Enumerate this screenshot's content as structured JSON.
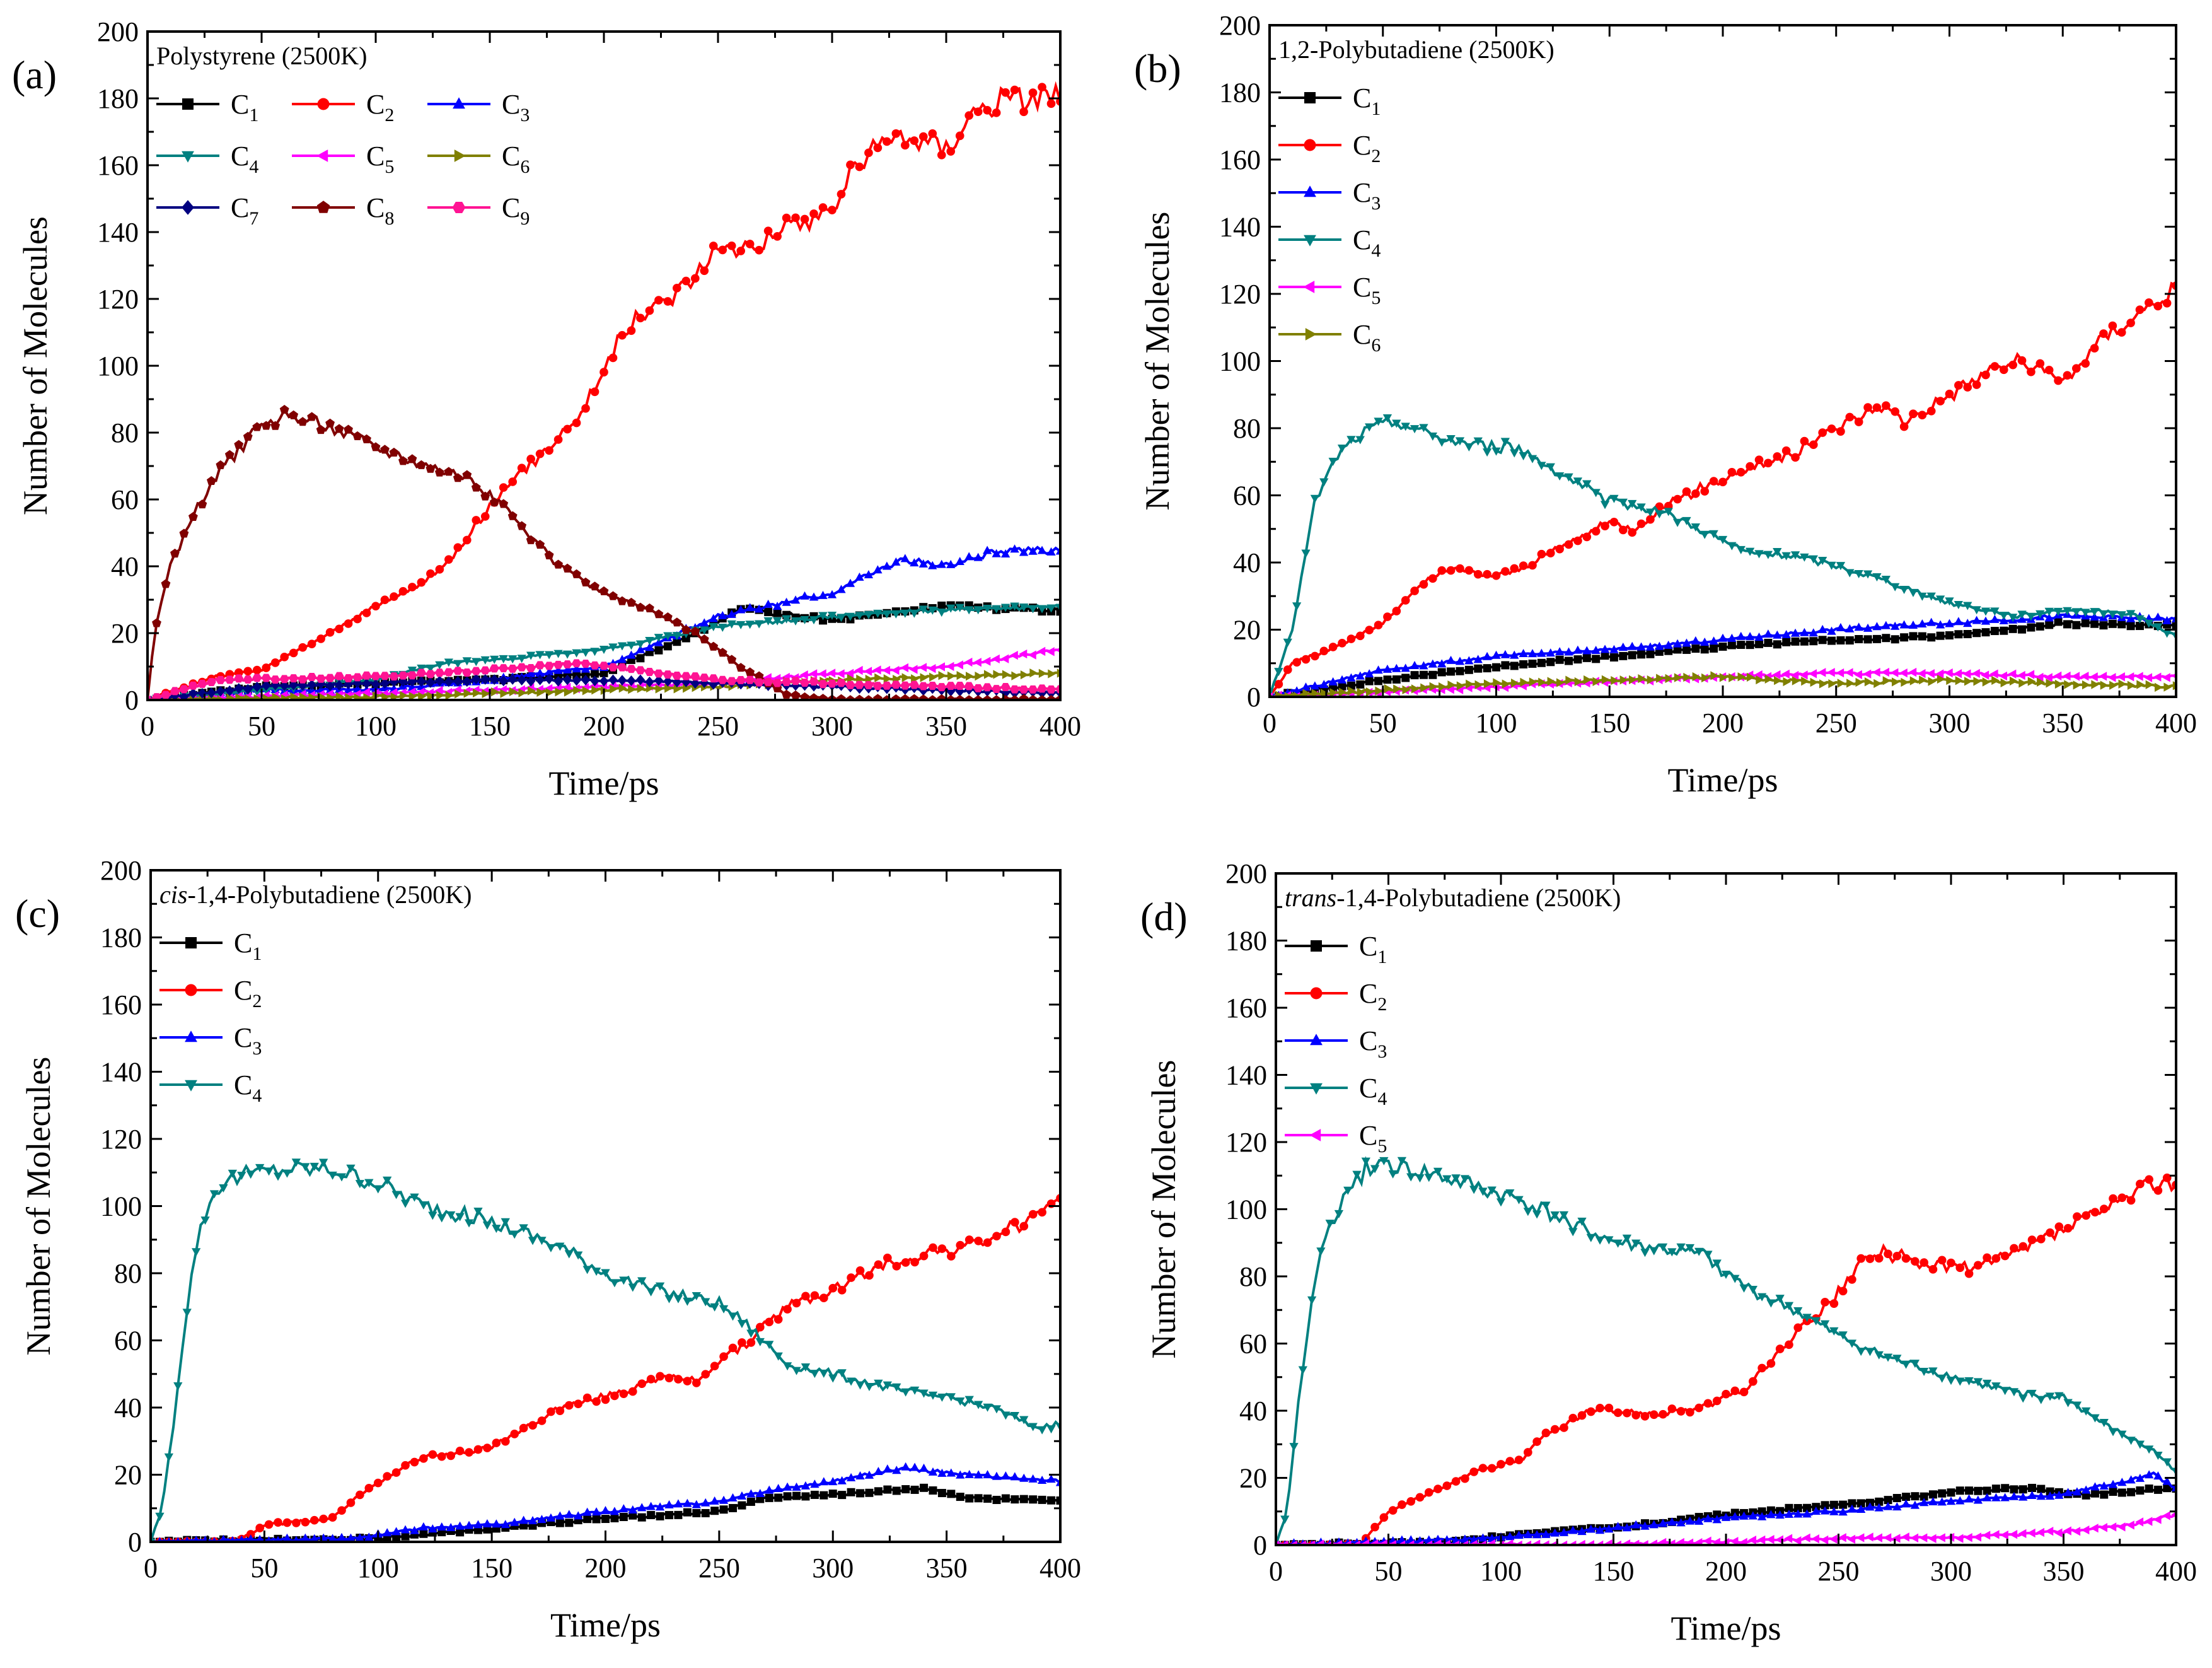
{
  "chart_data": [
    {
      "type": "line",
      "panel": "(a)",
      "title": "Polystyrene (2500K)",
      "xlabel": "Time/ps",
      "ylabel": "Number of Molecules",
      "xlim": [
        0,
        400
      ],
      "ylim": [
        0,
        200
      ],
      "xticks": [
        0,
        50,
        100,
        150,
        200,
        250,
        300,
        350,
        400
      ],
      "yticks": [
        0,
        20,
        40,
        60,
        80,
        100,
        120,
        140,
        160,
        180,
        200
      ],
      "legend_columns": 3,
      "series": [
        {
          "name": "C",
          "sub": "1",
          "color": "#000000",
          "marker": "square",
          "x": [
            0,
            50,
            100,
            150,
            200,
            240,
            260,
            300,
            350,
            400
          ],
          "y": [
            0,
            4,
            5,
            6,
            8,
            20,
            27,
            24,
            28,
            27
          ]
        },
        {
          "name": "C",
          "sub": "2",
          "color": "#ff0000",
          "marker": "circle",
          "x": [
            0,
            30,
            50,
            80,
            100,
            120,
            130,
            150,
            170,
            190,
            210,
            230,
            250,
            270,
            300,
            310,
            330,
            350,
            360,
            380,
            400
          ],
          "y": [
            0,
            7,
            9,
            20,
            28,
            35,
            40,
            58,
            72,
            86,
            112,
            121,
            134,
            138,
            147,
            160,
            170,
            165,
            176,
            180,
            182
          ]
        },
        {
          "name": "C",
          "sub": "3",
          "color": "#0000ff",
          "marker": "triangle-up",
          "x": [
            0,
            50,
            100,
            150,
            200,
            250,
            300,
            330,
            350,
            370,
            400
          ],
          "y": [
            0,
            3,
            3,
            6,
            10,
            25,
            32,
            42,
            40,
            44,
            45
          ]
        },
        {
          "name": "C",
          "sub": "4",
          "color": "#008080",
          "marker": "triangle-down",
          "x": [
            0,
            50,
            100,
            130,
            150,
            200,
            250,
            300,
            350,
            400
          ],
          "y": [
            0,
            3,
            6,
            11,
            12,
            15,
            22,
            25,
            27,
            28
          ]
        },
        {
          "name": "C",
          "sub": "5",
          "color": "#ff00ff",
          "marker": "triangle-left",
          "x": [
            0,
            100,
            200,
            250,
            300,
            350,
            400
          ],
          "y": [
            0,
            2,
            4,
            5,
            8,
            10,
            15
          ]
        },
        {
          "name": "C",
          "sub": "6",
          "color": "#808000",
          "marker": "triangle-right",
          "x": [
            0,
            100,
            200,
            250,
            300,
            350,
            400
          ],
          "y": [
            0,
            1,
            3,
            4,
            6,
            7,
            8
          ]
        },
        {
          "name": "C",
          "sub": "7",
          "color": "#000080",
          "marker": "diamond",
          "x": [
            0,
            50,
            100,
            150,
            200,
            250,
            300,
            350,
            400
          ],
          "y": [
            0,
            4,
            5,
            6,
            6,
            5,
            4,
            3,
            2
          ]
        },
        {
          "name": "C",
          "sub": "8",
          "color": "#800000",
          "marker": "pentagon",
          "x": [
            0,
            3,
            10,
            20,
            30,
            40,
            50,
            60,
            70,
            80,
            100,
            120,
            140,
            160,
            180,
            200,
            220,
            240,
            260,
            280,
            300
          ],
          "y": [
            0,
            20,
            40,
            55,
            67,
            75,
            82,
            85,
            84,
            82,
            76,
            71,
            67,
            55,
            40,
            32,
            27,
            20,
            10,
            2,
            0
          ]
        },
        {
          "name": "C",
          "sub": "9",
          "color": "#ff1493",
          "marker": "hexagon",
          "x": [
            0,
            30,
            100,
            150,
            190,
            250,
            300,
            350,
            400
          ],
          "y": [
            0,
            6,
            7,
            9,
            11,
            6,
            5,
            4,
            3
          ]
        }
      ]
    },
    {
      "type": "line",
      "panel": "(b)",
      "title": "1,2-Polybutadiene (2500K)",
      "xlabel": "Time/ps",
      "ylabel": "Number of Molecules",
      "xlim": [
        0,
        400
      ],
      "ylim": [
        0,
        200
      ],
      "xticks": [
        0,
        50,
        100,
        150,
        200,
        250,
        300,
        350,
        400
      ],
      "yticks": [
        0,
        20,
        40,
        60,
        80,
        100,
        120,
        140,
        160,
        180,
        200
      ],
      "legend_columns": 1,
      "series": [
        {
          "name": "C",
          "sub": "1",
          "color": "#000000",
          "marker": "square",
          "x": [
            0,
            50,
            100,
            150,
            200,
            250,
            300,
            350,
            400
          ],
          "y": [
            0,
            5,
            9,
            12,
            15,
            17,
            18,
            22,
            21
          ]
        },
        {
          "name": "C",
          "sub": "2",
          "color": "#ff0000",
          "marker": "circle",
          "x": [
            0,
            10,
            30,
            50,
            70,
            80,
            100,
            110,
            130,
            150,
            160,
            170,
            190,
            210,
            230,
            250,
            270,
            280,
            300,
            320,
            330,
            350,
            370,
            400
          ],
          "y": [
            0,
            10,
            15,
            22,
            35,
            38,
            36,
            38,
            45,
            52,
            50,
            55,
            62,
            68,
            72,
            80,
            87,
            82,
            90,
            98,
            100,
            94,
            108,
            122
          ]
        },
        {
          "name": "C",
          "sub": "3",
          "color": "#0000ff",
          "marker": "triangle-up",
          "x": [
            0,
            50,
            100,
            150,
            200,
            250,
            300,
            350,
            400
          ],
          "y": [
            0,
            8,
            12,
            14,
            17,
            20,
            22,
            24,
            23
          ]
        },
        {
          "name": "C",
          "sub": "4",
          "color": "#008080",
          "marker": "triangle-down",
          "x": [
            0,
            10,
            20,
            30,
            40,
            50,
            57,
            70,
            90,
            110,
            130,
            150,
            170,
            190,
            210,
            230,
            250,
            270,
            300,
            330,
            350,
            380,
            400
          ],
          "y": [
            0,
            20,
            58,
            72,
            78,
            81,
            82,
            78,
            75,
            74,
            66,
            58,
            56,
            50,
            43,
            42,
            39,
            35,
            28,
            24,
            26,
            25,
            18
          ]
        },
        {
          "name": "C",
          "sub": "5",
          "color": "#ff00ff",
          "marker": "triangle-left",
          "x": [
            0,
            100,
            200,
            250,
            300,
            350,
            400
          ],
          "y": [
            0,
            3,
            6,
            7,
            7,
            6,
            6
          ]
        },
        {
          "name": "C",
          "sub": "6",
          "color": "#808000",
          "marker": "triangle-right",
          "x": [
            0,
            50,
            100,
            150,
            200,
            250,
            300,
            350,
            400
          ],
          "y": [
            0,
            2,
            4,
            5,
            6,
            4,
            5,
            4,
            3
          ]
        }
      ]
    },
    {
      "type": "line",
      "panel": "(c)",
      "title_italic": "cis",
      "title": "-1,4-Polybutadiene (2500K)",
      "xlabel": "Time/ps",
      "ylabel": "Number of Molecules",
      "xlim": [
        0,
        400
      ],
      "ylim": [
        0,
        200
      ],
      "xticks": [
        0,
        50,
        100,
        150,
        200,
        250,
        300,
        350,
        400
      ],
      "yticks": [
        0,
        20,
        40,
        60,
        80,
        100,
        120,
        140,
        160,
        180,
        200
      ],
      "legend_columns": 1,
      "series": [
        {
          "name": "C",
          "sub": "1",
          "color": "#000000",
          "marker": "square",
          "x": [
            0,
            100,
            150,
            200,
            250,
            270,
            300,
            340,
            360,
            400
          ],
          "y": [
            0,
            1,
            4,
            7,
            9,
            13,
            14,
            16,
            13,
            12
          ]
        },
        {
          "name": "C",
          "sub": "2",
          "color": "#ff0000",
          "marker": "circle",
          "x": [
            0,
            38,
            50,
            80,
            90,
            110,
            120,
            150,
            180,
            210,
            220,
            240,
            250,
            260,
            280,
            300,
            320,
            340,
            360,
            380,
            400
          ],
          "y": [
            0,
            0,
            5,
            7,
            13,
            22,
            25,
            28,
            40,
            45,
            49,
            48,
            54,
            58,
            70,
            75,
            82,
            86,
            88,
            94,
            100
          ]
        },
        {
          "name": "C",
          "sub": "3",
          "color": "#0000ff",
          "marker": "triangle-up",
          "x": [
            0,
            90,
            120,
            150,
            200,
            250,
            270,
            300,
            330,
            360,
            400
          ],
          "y": [
            0,
            1,
            4,
            5,
            9,
            12,
            15,
            18,
            22,
            20,
            18
          ]
        },
        {
          "name": "C",
          "sub": "4",
          "color": "#008080",
          "marker": "triangle-down",
          "x": [
            0,
            5,
            10,
            15,
            20,
            25,
            30,
            40,
            50,
            60,
            80,
            100,
            120,
            140,
            160,
            180,
            200,
            220,
            250,
            260,
            280,
            300,
            330,
            350,
            370,
            390,
            400
          ],
          "y": [
            0,
            10,
            35,
            65,
            88,
            100,
            106,
            109,
            110,
            111,
            111,
            107,
            100,
            97,
            93,
            88,
            80,
            75,
            71,
            66,
            53,
            50,
            45,
            43,
            40,
            34,
            35
          ]
        }
      ]
    },
    {
      "type": "line",
      "panel": "(d)",
      "title_italic": "trans",
      "title": "-1,4-Polybutadiene (2500K)",
      "xlabel": "Time/ps",
      "ylabel": "Number of Molecules",
      "xlim": [
        0,
        400
      ],
      "ylim": [
        0,
        200
      ],
      "xticks": [
        0,
        50,
        100,
        150,
        200,
        250,
        300,
        350,
        400
      ],
      "yticks": [
        0,
        20,
        40,
        60,
        80,
        100,
        120,
        140,
        160,
        180,
        200
      ],
      "legend_columns": 1,
      "series": [
        {
          "name": "C",
          "sub": "1",
          "color": "#000000",
          "marker": "square",
          "x": [
            0,
            80,
            120,
            150,
            200,
            250,
            280,
            300,
            330,
            360,
            400
          ],
          "y": [
            0,
            1,
            4,
            5,
            9,
            12,
            14,
            16,
            17,
            15,
            17
          ]
        },
        {
          "name": "C",
          "sub": "2",
          "color": "#ff0000",
          "marker": "circle",
          "x": [
            0,
            38,
            50,
            70,
            90,
            110,
            120,
            140,
            150,
            170,
            190,
            210,
            220,
            230,
            250,
            260,
            270,
            290,
            310,
            330,
            350,
            370,
            390,
            400
          ],
          "y": [
            0,
            0,
            10,
            16,
            22,
            26,
            33,
            40,
            40,
            39,
            41,
            47,
            55,
            62,
            75,
            84,
            87,
            84,
            82,
            87,
            94,
            100,
            108,
            108
          ]
        },
        {
          "name": "C",
          "sub": "3",
          "color": "#0000ff",
          "marker": "triangle-up",
          "x": [
            0,
            100,
            150,
            200,
            250,
            300,
            350,
            390,
            400
          ],
          "y": [
            0,
            2,
            5,
            8,
            10,
            13,
            15,
            21,
            17
          ]
        },
        {
          "name": "C",
          "sub": "4",
          "color": "#008080",
          "marker": "triangle-down",
          "x": [
            0,
            5,
            10,
            15,
            20,
            25,
            30,
            35,
            40,
            45,
            55,
            70,
            90,
            110,
            130,
            150,
            170,
            190,
            210,
            230,
            250,
            270,
            300,
            330,
            350,
            370,
            390,
            400
          ],
          "y": [
            0,
            10,
            42,
            68,
            88,
            97,
            102,
            107,
            112,
            114,
            112,
            110,
            106,
            102,
            96,
            90,
            88,
            86,
            76,
            70,
            62,
            56,
            50,
            45,
            44,
            35,
            28,
            22
          ]
        },
        {
          "name": "C",
          "sub": "5",
          "color": "#ff00ff",
          "marker": "triangle-left",
          "x": [
            0,
            150,
            200,
            250,
            300,
            350,
            380,
            400
          ],
          "y": [
            0,
            0,
            1,
            2,
            2,
            4,
            6,
            9
          ]
        }
      ]
    }
  ]
}
